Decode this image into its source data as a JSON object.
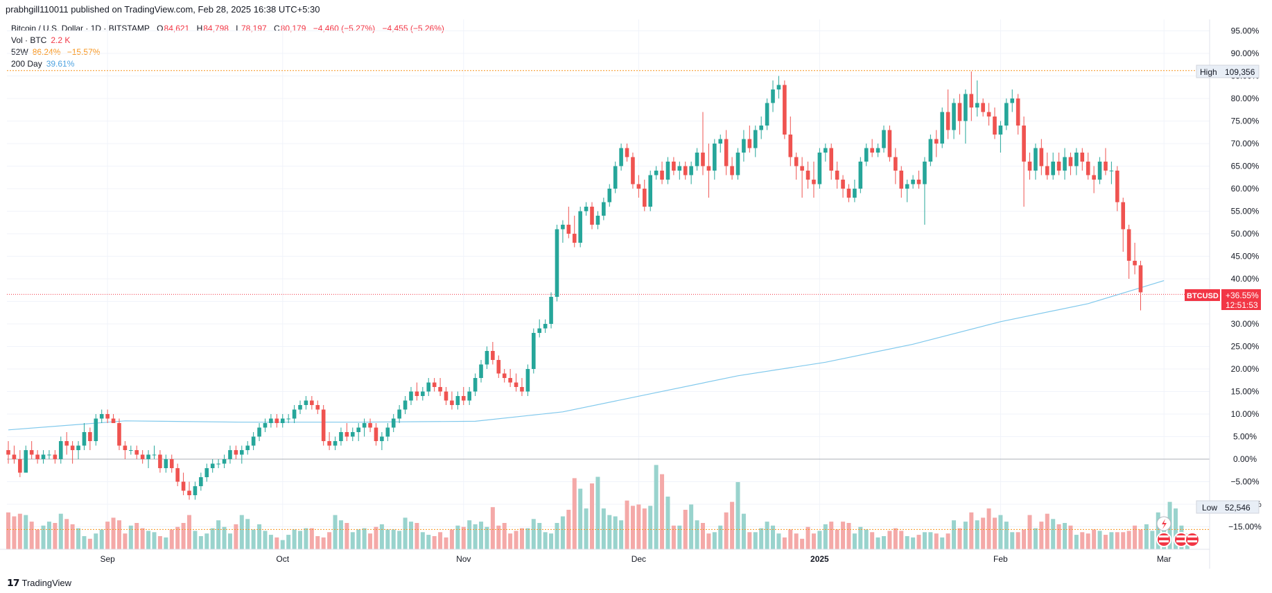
{
  "header": {
    "published": "prabhgill110011 published on TradingView.com, Feb 28, 2025 16:38 UTC+5:30"
  },
  "legend": {
    "symbol": "Bitcoin / U.S. Dollar · 1D · BITSTAMP",
    "o_label": "O",
    "o_value": "84,621",
    "h_label": "H",
    "h_value": "84,798",
    "l_label": "L",
    "l_value": "78,197",
    "c_label": "C",
    "c_value": "80,179",
    "change": "−4,460 (−5.27%)",
    "change2": "−4,455 (−5.26%)",
    "vol_label": "Vol · BTC",
    "vol_value": "2.2 K",
    "w52_label": "52W",
    "w52_high": "86.24%",
    "w52_low": "−15.57%",
    "ma_label": "200 Day",
    "ma_value": "39.61%"
  },
  "badges": {
    "high_label": "High",
    "high_value": "109,356",
    "low_label": "Low",
    "low_value": "52,546",
    "symbol_tag": "BTCUSD",
    "last_pct": "+36.55%",
    "countdown": "12:51:53"
  },
  "footer": {
    "brand": "TradingView"
  },
  "colors": {
    "up": "#26a69a",
    "down": "#ef5350",
    "ma": "#7fc8ec",
    "vol_up": "#99d3cd",
    "vol_down": "#f4a9a8",
    "grid": "#f0f3fa"
  },
  "chart_data": {
    "type": "candlestick",
    "title": "Bitcoin / U.S. Dollar · 1D · BITSTAMP",
    "y_axis_unit": "% change",
    "y_ticks": [
      "95.00%",
      "90.00%",
      "85.00%",
      "80.00%",
      "75.00%",
      "70.00%",
      "65.00%",
      "60.00%",
      "55.00%",
      "50.00%",
      "45.00%",
      "40.00%",
      "35.00%",
      "30.00%",
      "25.00%",
      "20.00%",
      "15.00%",
      "10.00%",
      "5.00%",
      "0.00%",
      "−5.00%",
      "−10.00%",
      "−15.00%"
    ],
    "ylim": [
      -15,
      95
    ],
    "x_ticks": [
      "Sep",
      "Oct",
      "Nov",
      "Dec",
      "2025",
      "Feb",
      "Mar"
    ],
    "x_tick_days": [
      17,
      47,
      78,
      108,
      139,
      170,
      198
    ],
    "start_date": "2024-08-16",
    "reference_lines": {
      "high_pct": 86.2,
      "low_pct": -15.6,
      "last_pct": 36.55,
      "zero_pct": 0
    },
    "candles_pct_ohlc": [
      [
        2,
        4,
        -1,
        1
      ],
      [
        1,
        3,
        -1,
        0
      ],
      [
        0,
        2,
        -4,
        -3
      ],
      [
        -3,
        3,
        -3,
        2
      ],
      [
        2,
        4,
        0,
        1
      ],
      [
        1,
        2,
        -1,
        0
      ],
      [
        0,
        2,
        -1,
        1
      ],
      [
        1,
        2,
        0,
        1
      ],
      [
        1,
        2,
        -1,
        0
      ],
      [
        0,
        5,
        -1,
        4
      ],
      [
        4,
        6,
        1,
        3
      ],
      [
        3,
        4,
        -1,
        2
      ],
      [
        2,
        4,
        0,
        3
      ],
      [
        3,
        8,
        2,
        6
      ],
      [
        6,
        7,
        2,
        4
      ],
      [
        4,
        10,
        3,
        9
      ],
      [
        9,
        11,
        8,
        10
      ],
      [
        10,
        11,
        8,
        9
      ],
      [
        9,
        10,
        8,
        8
      ],
      [
        8,
        9,
        2,
        3
      ],
      [
        3,
        4,
        0,
        2
      ],
      [
        2,
        3,
        1,
        2
      ],
      [
        2,
        3,
        0,
        1
      ],
      [
        1,
        2,
        -1,
        0
      ],
      [
        0,
        2,
        -2,
        1
      ],
      [
        1,
        3,
        0,
        1
      ],
      [
        1,
        2,
        -3,
        -2
      ],
      [
        -2,
        1,
        -3,
        0
      ],
      [
        0,
        1,
        -3,
        -2
      ],
      [
        -2,
        -1,
        -6,
        -5
      ],
      [
        -5,
        -3,
        -8,
        -7
      ],
      [
        -7,
        -5,
        -9,
        -8
      ],
      [
        -8,
        -5,
        -9,
        -6
      ],
      [
        -6,
        -3,
        -7,
        -4
      ],
      [
        -4,
        -1,
        -5,
        -2
      ],
      [
        -2,
        0,
        -3,
        -1
      ],
      [
        -1,
        0,
        -2,
        -1
      ],
      [
        -1,
        1,
        -2,
        0
      ],
      [
        0,
        3,
        -1,
        2
      ],
      [
        2,
        3,
        0,
        1
      ],
      [
        1,
        3,
        -1,
        2
      ],
      [
        2,
        4,
        1,
        3
      ],
      [
        3,
        6,
        2,
        5
      ],
      [
        5,
        8,
        4,
        7
      ],
      [
        7,
        9,
        6,
        8
      ],
      [
        8,
        10,
        7,
        9
      ],
      [
        9,
        10,
        7,
        8
      ],
      [
        8,
        10,
        7,
        9
      ],
      [
        9,
        10,
        8,
        9
      ],
      [
        9,
        12,
        8,
        11
      ],
      [
        11,
        13,
        10,
        12
      ],
      [
        12,
        14,
        11,
        13
      ],
      [
        13,
        14,
        11,
        12
      ],
      [
        12,
        13,
        10,
        11
      ],
      [
        11,
        12,
        3,
        4
      ],
      [
        4,
        6,
        2,
        3
      ],
      [
        3,
        5,
        2,
        4
      ],
      [
        4,
        7,
        3,
        6
      ],
      [
        6,
        8,
        4,
        5
      ],
      [
        5,
        7,
        4,
        6
      ],
      [
        6,
        8,
        4,
        7
      ],
      [
        7,
        9,
        5,
        8
      ],
      [
        8,
        9,
        6,
        7
      ],
      [
        7,
        8,
        3,
        4
      ],
      [
        4,
        6,
        2,
        5
      ],
      [
        5,
        8,
        4,
        7
      ],
      [
        7,
        10,
        6,
        9
      ],
      [
        9,
        12,
        8,
        11
      ],
      [
        11,
        14,
        10,
        13
      ],
      [
        13,
        16,
        12,
        15
      ],
      [
        15,
        17,
        13,
        14
      ],
      [
        14,
        16,
        13,
        15
      ],
      [
        15,
        18,
        14,
        17
      ],
      [
        17,
        18,
        15,
        16
      ],
      [
        16,
        18,
        14,
        15
      ],
      [
        15,
        16,
        12,
        13
      ],
      [
        13,
        15,
        11,
        12
      ],
      [
        12,
        15,
        11,
        14
      ],
      [
        14,
        16,
        12,
        13
      ],
      [
        13,
        16,
        12,
        15
      ],
      [
        15,
        19,
        14,
        18
      ],
      [
        18,
        22,
        17,
        21
      ],
      [
        21,
        25,
        20,
        24
      ],
      [
        24,
        26,
        21,
        22
      ],
      [
        22,
        23,
        18,
        19
      ],
      [
        19,
        20,
        17,
        18
      ],
      [
        18,
        20,
        16,
        17
      ],
      [
        17,
        19,
        15,
        16
      ],
      [
        16,
        18,
        14,
        15
      ],
      [
        15,
        21,
        14,
        20
      ],
      [
        20,
        29,
        19,
        28
      ],
      [
        28,
        31,
        27,
        29
      ],
      [
        29,
        31,
        28,
        30
      ],
      [
        30,
        37,
        29,
        36
      ],
      [
        36,
        52,
        35,
        51
      ],
      [
        51,
        53,
        48,
        52
      ],
      [
        52,
        56,
        49,
        50
      ],
      [
        50,
        54,
        47,
        48
      ],
      [
        48,
        56,
        47,
        55
      ],
      [
        55,
        57,
        54,
        56
      ],
      [
        56,
        57,
        51,
        52
      ],
      [
        52,
        55,
        51,
        54
      ],
      [
        54,
        58,
        53,
        57
      ],
      [
        57,
        61,
        56,
        60
      ],
      [
        60,
        66,
        59,
        65
      ],
      [
        65,
        70,
        64,
        69
      ],
      [
        69,
        70,
        66,
        67
      ],
      [
        67,
        68,
        60,
        61
      ],
      [
        61,
        63,
        58,
        60
      ],
      [
        60,
        62,
        55,
        56
      ],
      [
        56,
        64,
        55,
        63
      ],
      [
        63,
        65,
        62,
        64
      ],
      [
        64,
        66,
        61,
        62
      ],
      [
        62,
        67,
        61,
        66
      ],
      [
        66,
        67,
        63,
        64
      ],
      [
        64,
        66,
        62,
        65
      ],
      [
        65,
        66,
        62,
        63
      ],
      [
        63,
        66,
        61,
        65
      ],
      [
        65,
        69,
        64,
        68
      ],
      [
        68,
        77,
        63,
        65
      ],
      [
        65,
        70,
        58,
        64
      ],
      [
        64,
        71,
        62,
        70
      ],
      [
        70,
        72,
        68,
        71
      ],
      [
        71,
        73,
        63,
        65
      ],
      [
        65,
        67,
        62,
        63
      ],
      [
        63,
        69,
        62,
        68
      ],
      [
        68,
        73,
        66,
        71
      ],
      [
        71,
        74,
        68,
        69
      ],
      [
        69,
        74,
        67,
        73
      ],
      [
        73,
        76,
        71,
        74
      ],
      [
        74,
        80,
        73,
        79
      ],
      [
        79,
        84,
        77,
        82
      ],
      [
        82,
        85,
        80,
        83
      ],
      [
        83,
        84,
        71,
        72
      ],
      [
        72,
        76,
        65,
        67
      ],
      [
        67,
        68,
        62,
        65
      ],
      [
        65,
        67,
        58,
        64
      ],
      [
        64,
        66,
        60,
        62
      ],
      [
        62,
        66,
        58,
        61
      ],
      [
        61,
        69,
        60,
        68
      ],
      [
        68,
        70,
        66,
        69
      ],
      [
        69,
        70,
        62,
        64
      ],
      [
        64,
        66,
        60,
        62
      ],
      [
        62,
        63,
        58,
        60
      ],
      [
        60,
        61,
        57,
        58
      ],
      [
        58,
        62,
        57,
        60
      ],
      [
        60,
        67,
        59,
        66
      ],
      [
        66,
        70,
        65,
        69
      ],
      [
        69,
        71,
        67,
        68
      ],
      [
        68,
        70,
        67,
        69
      ],
      [
        69,
        74,
        68,
        73
      ],
      [
        73,
        74,
        66,
        67
      ],
      [
        67,
        69,
        61,
        64
      ],
      [
        64,
        65,
        58,
        60
      ],
      [
        60,
        62,
        57,
        61
      ],
      [
        61,
        63,
        60,
        62
      ],
      [
        62,
        64,
        60,
        61
      ],
      [
        61,
        67,
        52,
        66
      ],
      [
        66,
        72,
        65,
        71
      ],
      [
        71,
        73,
        67,
        70
      ],
      [
        70,
        78,
        69,
        77
      ],
      [
        77,
        82,
        71,
        73
      ],
      [
        73,
        80,
        71,
        79
      ],
      [
        79,
        81,
        72,
        75
      ],
      [
        75,
        82,
        70,
        81
      ],
      [
        81,
        86,
        75,
        78
      ],
      [
        78,
        84,
        76,
        79
      ],
      [
        79,
        80,
        76,
        77
      ],
      [
        77,
        79,
        74,
        76
      ],
      [
        76,
        78,
        71,
        72
      ],
      [
        72,
        75,
        68,
        74
      ],
      [
        74,
        80,
        73,
        79
      ],
      [
        79,
        82,
        77,
        80
      ],
      [
        80,
        81,
        72,
        74
      ],
      [
        74,
        76,
        56,
        66
      ],
      [
        66,
        68,
        62,
        64
      ],
      [
        64,
        70,
        62,
        69
      ],
      [
        69,
        71,
        63,
        65
      ],
      [
        65,
        68,
        62,
        63
      ],
      [
        63,
        68,
        62,
        66
      ],
      [
        66,
        68,
        63,
        64
      ],
      [
        64,
        69,
        62,
        67
      ],
      [
        67,
        68,
        63,
        65
      ],
      [
        65,
        69,
        63,
        68
      ],
      [
        68,
        69,
        64,
        66
      ],
      [
        66,
        68,
        62,
        63
      ],
      [
        63,
        65,
        59,
        62
      ],
      [
        62,
        67,
        61,
        66
      ],
      [
        66,
        69,
        63,
        64
      ],
      [
        64,
        66,
        61,
        64
      ],
      [
        64,
        65,
        55,
        57
      ],
      [
        57,
        58,
        46,
        51
      ],
      [
        51,
        52,
        40,
        44
      ],
      [
        44,
        48,
        41,
        43
      ],
      [
        43,
        44,
        33,
        37
      ]
    ],
    "ma_200_pct": [
      [
        0,
        6.5
      ],
      [
        20,
        8.5
      ],
      [
        40,
        8.2
      ],
      [
        60,
        8.2
      ],
      [
        80,
        8.4
      ],
      [
        95,
        10.5
      ],
      [
        110,
        14.5
      ],
      [
        125,
        18.5
      ],
      [
        140,
        21.5
      ],
      [
        155,
        25.5
      ],
      [
        170,
        30.5
      ],
      [
        185,
        34.5
      ],
      [
        198,
        39.6
      ]
    ],
    "volume_relative": [
      0.28,
      0.25,
      0.27,
      0.26,
      0.21,
      0.15,
      0.18,
      0.21,
      0.2,
      0.27,
      0.23,
      0.19,
      0.16,
      0.1,
      0.08,
      0.12,
      0.15,
      0.21,
      0.24,
      0.22,
      0.12,
      0.18,
      0.2,
      0.16,
      0.14,
      0.13,
      0.1,
      0.09,
      0.15,
      0.17,
      0.2,
      0.26,
      0.14,
      0.1,
      0.12,
      0.16,
      0.22,
      0.17,
      0.12,
      0.19,
      0.26,
      0.23,
      0.15,
      0.19,
      0.14,
      0.11,
      0.09,
      0.07,
      0.11,
      0.15,
      0.14,
      0.16,
      0.16,
      0.1,
      0.09,
      0.13,
      0.26,
      0.22,
      0.2,
      0.13,
      0.15,
      0.16,
      0.12,
      0.17,
      0.19,
      0.15,
      0.15,
      0.14,
      0.24,
      0.21,
      0.2,
      0.13,
      0.11,
      0.1,
      0.13,
      0.09,
      0.15,
      0.18,
      0.17,
      0.22,
      0.19,
      0.21,
      0.17,
      0.32,
      0.18,
      0.2,
      0.12,
      0.14,
      0.16,
      0.16,
      0.23,
      0.2,
      0.13,
      0.12,
      0.2,
      0.25,
      0.3,
      0.54,
      0.46,
      0.31,
      0.5,
      0.55,
      0.31,
      0.26,
      0.25,
      0.22,
      0.37,
      0.33,
      0.34,
      0.31,
      0.33,
      0.64,
      0.57,
      0.4,
      0.18,
      0.18,
      0.3,
      0.34,
      0.22,
      0.2,
      0.12,
      0.13,
      0.18,
      0.28,
      0.36,
      0.51,
      0.27,
      0.13,
      0.13,
      0.16,
      0.21,
      0.18,
      0.12,
      0.09,
      0.15,
      0.12,
      0.08,
      0.17,
      0.12,
      0.14,
      0.19,
      0.21,
      0.15,
      0.21,
      0.2,
      0.12,
      0.17,
      0.15,
      0.13,
      0.09,
      0.1,
      0.14,
      0.16,
      0.14,
      0.1,
      0.09,
      0.11,
      0.13,
      0.13,
      0.12,
      0.09,
      0.12,
      0.22,
      0.16,
      0.21,
      0.28,
      0.22,
      0.24,
      0.31,
      0.24,
      0.26,
      0.21,
      0.13,
      0.13,
      0.15,
      0.26,
      0.16,
      0.21,
      0.27,
      0.23,
      0.19,
      0.2,
      0.18,
      0.11,
      0.13,
      0.12,
      0.15,
      0.14,
      0.11,
      0.13,
      0.13,
      0.13,
      0.14,
      0.18,
      0.15,
      0.19,
      0.14,
      0.28,
      0.21,
      0.36,
      0.31,
      0.18,
      0.12
    ]
  }
}
